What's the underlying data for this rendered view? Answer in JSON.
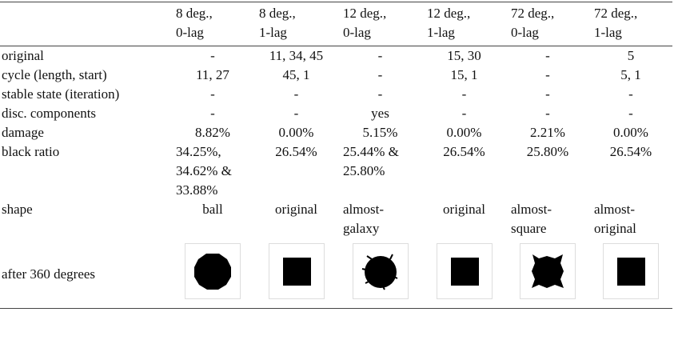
{
  "table": {
    "columns": [
      [
        "8 deg.,",
        "0-lag"
      ],
      [
        "8 deg.,",
        "1-lag"
      ],
      [
        "12 deg.,",
        "0-lag"
      ],
      [
        "12 deg.,",
        "1-lag"
      ],
      [
        "72 deg.,",
        "0-lag"
      ],
      [
        "72 deg.,",
        "1-lag"
      ]
    ],
    "rows": [
      {
        "label": "original",
        "cells": [
          [
            "-"
          ],
          [
            "11, 34, 45"
          ],
          [
            "-"
          ],
          [
            "15, 30"
          ],
          [
            "-"
          ],
          [
            "5"
          ]
        ]
      },
      {
        "label": "cycle (length, start)",
        "cells": [
          [
            "11, 27"
          ],
          [
            "45, 1"
          ],
          [
            "-"
          ],
          [
            "15, 1"
          ],
          [
            "-"
          ],
          [
            "5, 1"
          ]
        ]
      },
      {
        "label": "stable state (iteration)",
        "cells": [
          [
            "-"
          ],
          [
            "-"
          ],
          [
            "-"
          ],
          [
            "-"
          ],
          [
            "-"
          ],
          [
            "-"
          ]
        ]
      },
      {
        "label": "disc. components",
        "cells": [
          [
            "-"
          ],
          [
            "-"
          ],
          [
            "yes"
          ],
          [
            "-"
          ],
          [
            "-"
          ],
          [
            "-"
          ]
        ]
      },
      {
        "label": "damage",
        "cells": [
          [
            "8.82%"
          ],
          [
            "0.00%"
          ],
          [
            "5.15%"
          ],
          [
            "0.00%"
          ],
          [
            "2.21%"
          ],
          [
            "0.00%"
          ]
        ]
      },
      {
        "label": "black ratio",
        "cells": [
          [
            "34.25%,",
            "34.62% &",
            "33.88%"
          ],
          [
            "26.54%"
          ],
          [
            "25.44% &",
            "25.80%"
          ],
          [
            "26.54%"
          ],
          [
            "25.80%"
          ],
          [
            "26.54%"
          ]
        ]
      },
      {
        "label": "shape",
        "cells": [
          [
            "ball"
          ],
          [
            "original"
          ],
          [
            "almost-",
            "galaxy"
          ],
          [
            "original"
          ],
          [
            "almost-",
            "square"
          ],
          [
            "almost-",
            "original"
          ]
        ]
      }
    ],
    "image_row_label": "after 360 degrees"
  }
}
